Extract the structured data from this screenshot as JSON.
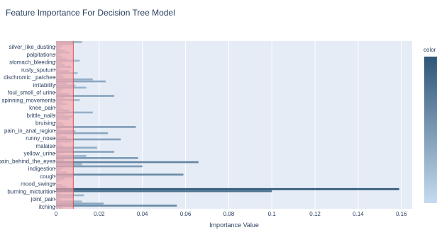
{
  "title": "Feature Importance For Decision Tree Model",
  "colorbar": {
    "title": "color",
    "color_high": "#2e5678",
    "color_low": "#c6dbef"
  },
  "theme": {
    "plot_bg": "#e5ecf6",
    "grid": "#ffffff",
    "highlight_fill": "#f4a3a8",
    "highlight_line": "#d9534f"
  },
  "chart_data": {
    "type": "bar",
    "orientation": "horizontal",
    "title": "Feature Importance For Decision Tree Model",
    "xlabel": "Importance Value",
    "ylabel": "",
    "xlim": [
      0,
      0.165
    ],
    "xticks": [
      0,
      0.02,
      0.04,
      0.06,
      0.08,
      0.1,
      0.12,
      0.14,
      0.16
    ],
    "xtick_labels": [
      "0",
      "0.02",
      "0.04",
      "0.06",
      "0.08",
      "0.1",
      "0.12",
      "0.14",
      "0.16"
    ],
    "grid": true,
    "highlight_band": [
      0,
      0.008
    ],
    "labeled_categories": [
      "itching",
      "joint_pain",
      "burning_micturition",
      "mood_swings",
      "cough",
      "indigestion",
      "pain_behind_the_eyes",
      "yellow_urine",
      "malaise",
      "runny_nose",
      "pain_in_anal_region",
      "bruising",
      "brittle_nails",
      "knee_pain",
      "spinning_movements",
      "foul_smell_of urine",
      "irritability",
      "dischromic _patches",
      "rusty_sputum",
      "stomach_bleeding",
      "palpitations",
      "silver_like_dusting"
    ],
    "labeled_values": [
      0.003,
      0.002,
      0.1,
      0.0,
      0.005,
      0.003,
      0.004,
      0.002,
      0.003,
      0.001,
      0.001,
      0.001,
      0.001,
      0.002,
      0.003,
      0.002,
      0.004,
      0.002,
      0.002,
      0.001,
      0.001,
      0.001
    ],
    "values": [
      0.003,
      0.056,
      0.022,
      0.012,
      0.002,
      0.008,
      0.013,
      0.002,
      0.1,
      0.159,
      0.005,
      0.003,
      0.0,
      0.002,
      0.004,
      0.008,
      0.059,
      0.005,
      0.002,
      0.003,
      0.04,
      0.012,
      0.066,
      0.004,
      0.038,
      0.014,
      0.002,
      0.027,
      0.008,
      0.019,
      0.003,
      0.002,
      0.007,
      0.03,
      0.005,
      0.002,
      0.024,
      0.009,
      0.002,
      0.037,
      0.004,
      0.003,
      0.001,
      0.006,
      0.008,
      0.004,
      0.017,
      0.006,
      0.003,
      0.002,
      0.005,
      0.003,
      0.011,
      0.004,
      0.027,
      0.006,
      0.002,
      0.003,
      0.014,
      0.009,
      0.005,
      0.023,
      0.017,
      0.004,
      0.003,
      0.01,
      0.006,
      0.002,
      0.007,
      0.004,
      0.003,
      0.011,
      0.005,
      0.003,
      0.002,
      0.006,
      0.004,
      0.002,
      0.003,
      0.008,
      0.012
    ]
  }
}
